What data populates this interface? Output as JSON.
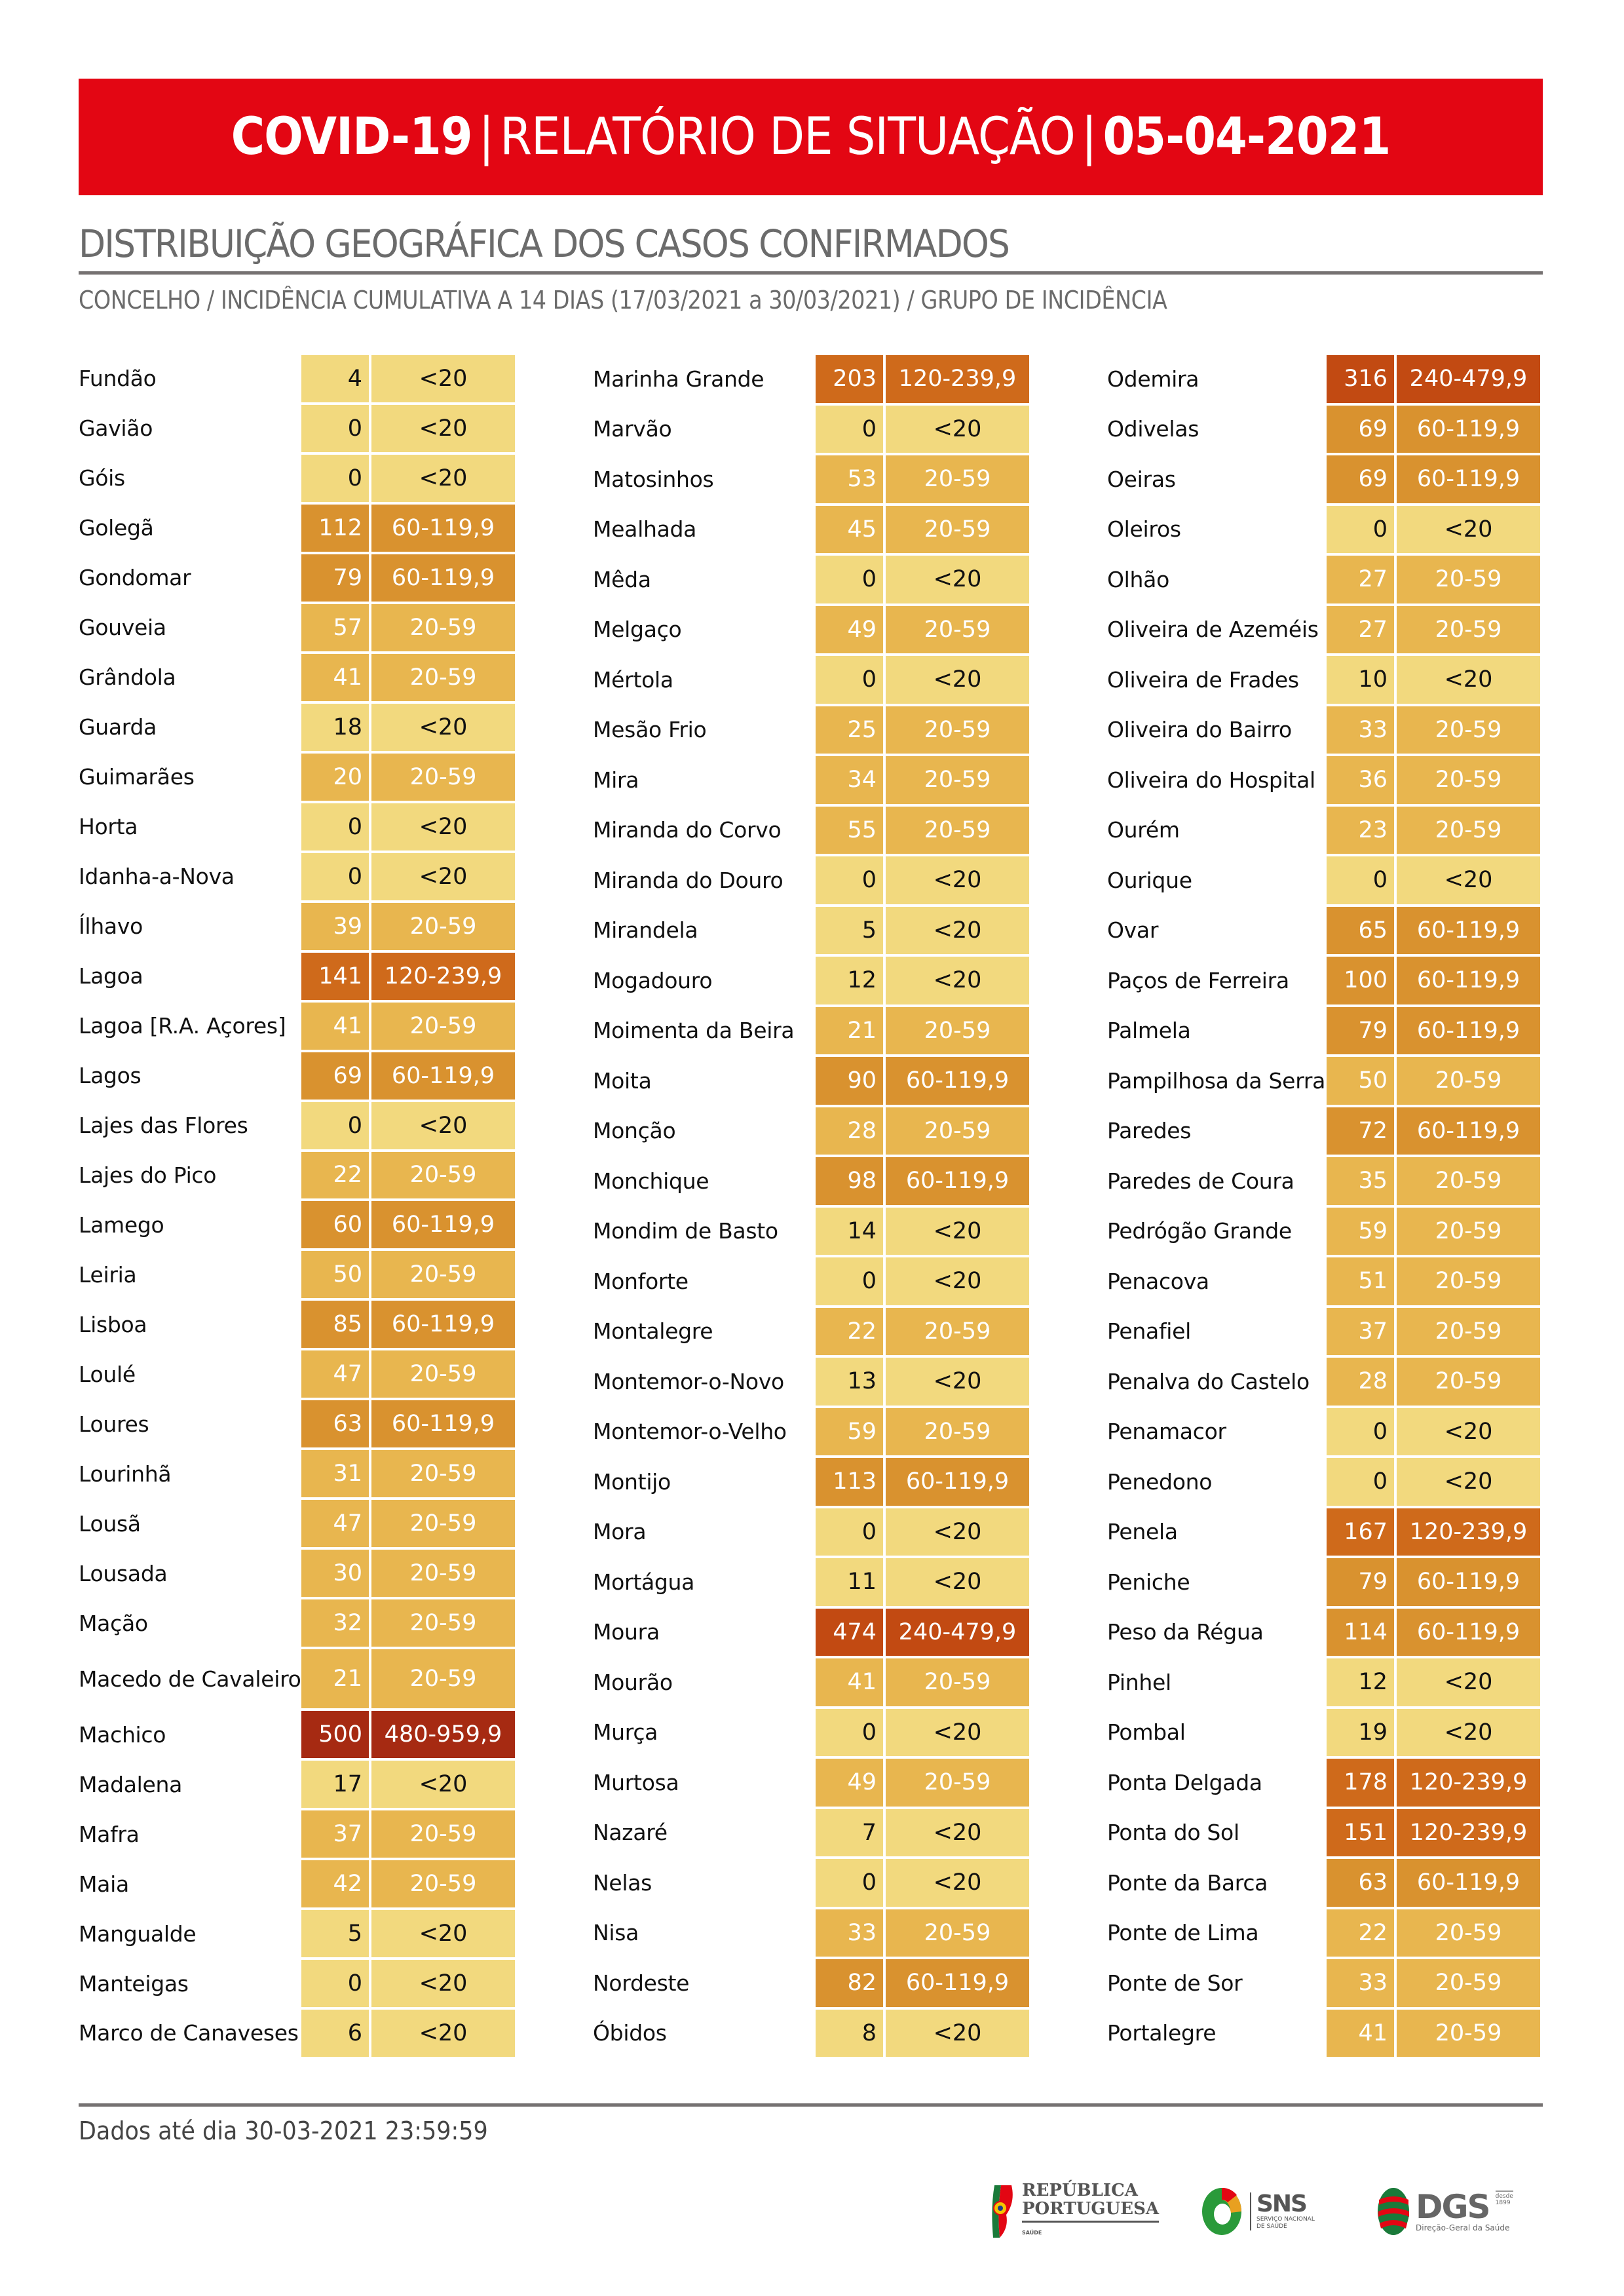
{
  "header": {
    "part1": "COVID-19",
    "sep": "|",
    "part2": "RELATÓRIO DE SITUAÇÃO",
    "part3": "05-04-2021",
    "background_color": "#e30613"
  },
  "section": {
    "title": "DISTRIBUIÇÃO GEOGRÁFICA DOS CASOS CONFIRMADOS",
    "subtitle": "CONCELHO / INCIDÊNCIA CUMULATIVA A 14 DIAS (17/03/2021 a 30/03/2021) / GRUPO DE INCIDÊNCIA"
  },
  "incidence_groups": {
    "<20": {
      "bg": "#f2d97e",
      "fg": "#111111"
    },
    "20-59": {
      "bg": "#e8b64f",
      "fg": "#ffffff"
    },
    "60-119,9": {
      "bg": "#d9922f",
      "fg": "#ffffff"
    },
    "120-239,9": {
      "bg": "#cf6a1b",
      "fg": "#ffffff"
    },
    "240-479,9": {
      "bg": "#c24a12",
      "fg": "#ffffff"
    },
    "480-959,9": {
      "bg": "#a62a12",
      "fg": "#ffffff"
    }
  },
  "columns": [
    [
      {
        "name": "Fundão",
        "value": "4",
        "group": "<20"
      },
      {
        "name": "Gavião",
        "value": "0",
        "group": "<20"
      },
      {
        "name": "Góis",
        "value": "0",
        "group": "<20"
      },
      {
        "name": "Golegã",
        "value": "112",
        "group": "60-119,9"
      },
      {
        "name": "Gondomar",
        "value": "79",
        "group": "60-119,9"
      },
      {
        "name": "Gouveia",
        "value": "57",
        "group": "20-59"
      },
      {
        "name": "Grândola",
        "value": "41",
        "group": "20-59"
      },
      {
        "name": "Guarda",
        "value": "18",
        "group": "<20"
      },
      {
        "name": "Guimarães",
        "value": "20",
        "group": "20-59"
      },
      {
        "name": "Horta",
        "value": "0",
        "group": "<20"
      },
      {
        "name": "Idanha-a-Nova",
        "value": "0",
        "group": "<20"
      },
      {
        "name": "Ílhavo",
        "value": "39",
        "group": "20-59"
      },
      {
        "name": "Lagoa",
        "value": "141",
        "group": "120-239,9"
      },
      {
        "name": "Lagoa [R.A. Açores]",
        "value": "41",
        "group": "20-59"
      },
      {
        "name": "Lagos",
        "value": "69",
        "group": "60-119,9"
      },
      {
        "name": "Lajes das Flores",
        "value": "0",
        "group": "<20"
      },
      {
        "name": "Lajes do Pico",
        "value": "22",
        "group": "20-59"
      },
      {
        "name": "Lamego",
        "value": "60",
        "group": "60-119,9"
      },
      {
        "name": "Leiria",
        "value": "50",
        "group": "20-59"
      },
      {
        "name": "Lisboa",
        "value": "85",
        "group": "60-119,9"
      },
      {
        "name": "Loulé",
        "value": "47",
        "group": "20-59"
      },
      {
        "name": "Loures",
        "value": "63",
        "group": "60-119,9"
      },
      {
        "name": "Lourinhã",
        "value": "31",
        "group": "20-59"
      },
      {
        "name": "Lousã",
        "value": "47",
        "group": "20-59"
      },
      {
        "name": "Lousada",
        "value": "30",
        "group": "20-59"
      },
      {
        "name": "Mação",
        "value": "32",
        "group": "20-59"
      },
      {
        "name": "Macedo de Cavaleiros",
        "value": "21",
        "group": "20-59",
        "tall": true
      },
      {
        "name": "Machico",
        "value": "500",
        "group": "480-959,9"
      },
      {
        "name": "Madalena",
        "value": "17",
        "group": "<20"
      },
      {
        "name": "Mafra",
        "value": "37",
        "group": "20-59"
      },
      {
        "name": "Maia",
        "value": "42",
        "group": "20-59"
      },
      {
        "name": "Mangualde",
        "value": "5",
        "group": "<20"
      },
      {
        "name": "Manteigas",
        "value": "0",
        "group": "<20"
      },
      {
        "name": "Marco de Canaveses",
        "value": "6",
        "group": "<20"
      }
    ],
    [
      {
        "name": "Marinha Grande",
        "value": "203",
        "group": "120-239,9"
      },
      {
        "name": "Marvão",
        "value": "0",
        "group": "<20"
      },
      {
        "name": "Matosinhos",
        "value": "53",
        "group": "20-59"
      },
      {
        "name": "Mealhada",
        "value": "45",
        "group": "20-59"
      },
      {
        "name": "Mêda",
        "value": "0",
        "group": "<20"
      },
      {
        "name": "Melgaço",
        "value": "49",
        "group": "20-59"
      },
      {
        "name": "Mértola",
        "value": "0",
        "group": "<20"
      },
      {
        "name": "Mesão Frio",
        "value": "25",
        "group": "20-59"
      },
      {
        "name": "Mira",
        "value": "34",
        "group": "20-59"
      },
      {
        "name": "Miranda do Corvo",
        "value": "55",
        "group": "20-59"
      },
      {
        "name": "Miranda do Douro",
        "value": "0",
        "group": "<20"
      },
      {
        "name": "Mirandela",
        "value": "5",
        "group": "<20"
      },
      {
        "name": "Mogadouro",
        "value": "12",
        "group": "<20"
      },
      {
        "name": "Moimenta da Beira",
        "value": "21",
        "group": "20-59"
      },
      {
        "name": "Moita",
        "value": "90",
        "group": "60-119,9"
      },
      {
        "name": "Monção",
        "value": "28",
        "group": "20-59"
      },
      {
        "name": "Monchique",
        "value": "98",
        "group": "60-119,9"
      },
      {
        "name": "Mondim de Basto",
        "value": "14",
        "group": "<20"
      },
      {
        "name": "Monforte",
        "value": "0",
        "group": "<20"
      },
      {
        "name": "Montalegre",
        "value": "22",
        "group": "20-59"
      },
      {
        "name": "Montemor-o-Novo",
        "value": "13",
        "group": "<20"
      },
      {
        "name": "Montemor-o-Velho",
        "value": "59",
        "group": "20-59"
      },
      {
        "name": "Montijo",
        "value": "113",
        "group": "60-119,9"
      },
      {
        "name": "Mora",
        "value": "0",
        "group": "<20"
      },
      {
        "name": "Mortágua",
        "value": "11",
        "group": "<20"
      },
      {
        "name": "Moura",
        "value": "474",
        "group": "240-479,9"
      },
      {
        "name": "Mourão",
        "value": "41",
        "group": "20-59"
      },
      {
        "name": "Murça",
        "value": "0",
        "group": "<20"
      },
      {
        "name": "Murtosa",
        "value": "49",
        "group": "20-59"
      },
      {
        "name": "Nazaré",
        "value": "7",
        "group": "<20"
      },
      {
        "name": "Nelas",
        "value": "0",
        "group": "<20"
      },
      {
        "name": "Nisa",
        "value": "33",
        "group": "20-59"
      },
      {
        "name": "Nordeste",
        "value": "82",
        "group": "60-119,9"
      },
      {
        "name": "Óbidos",
        "value": "8",
        "group": "<20"
      }
    ],
    [
      {
        "name": "Odemira",
        "value": "316",
        "group": "240-479,9"
      },
      {
        "name": "Odivelas",
        "value": "69",
        "group": "60-119,9"
      },
      {
        "name": "Oeiras",
        "value": "69",
        "group": "60-119,9"
      },
      {
        "name": "Oleiros",
        "value": "0",
        "group": "<20"
      },
      {
        "name": "Olhão",
        "value": "27",
        "group": "20-59"
      },
      {
        "name": "Oliveira de Azeméis",
        "value": "27",
        "group": "20-59"
      },
      {
        "name": "Oliveira de Frades",
        "value": "10",
        "group": "<20"
      },
      {
        "name": "Oliveira do Bairro",
        "value": "33",
        "group": "20-59"
      },
      {
        "name": "Oliveira do Hospital",
        "value": "36",
        "group": "20-59"
      },
      {
        "name": "Ourém",
        "value": "23",
        "group": "20-59"
      },
      {
        "name": "Ourique",
        "value": "0",
        "group": "<20"
      },
      {
        "name": "Ovar",
        "value": "65",
        "group": "60-119,9"
      },
      {
        "name": "Paços de Ferreira",
        "value": "100",
        "group": "60-119,9"
      },
      {
        "name": "Palmela",
        "value": "79",
        "group": "60-119,9"
      },
      {
        "name": "Pampilhosa da Serra",
        "value": "50",
        "group": "20-59"
      },
      {
        "name": "Paredes",
        "value": "72",
        "group": "60-119,9"
      },
      {
        "name": "Paredes de Coura",
        "value": "35",
        "group": "20-59"
      },
      {
        "name": "Pedrógão Grande",
        "value": "59",
        "group": "20-59"
      },
      {
        "name": "Penacova",
        "value": "51",
        "group": "20-59"
      },
      {
        "name": "Penafiel",
        "value": "37",
        "group": "20-59"
      },
      {
        "name": "Penalva do Castelo",
        "value": "28",
        "group": "20-59"
      },
      {
        "name": "Penamacor",
        "value": "0",
        "group": "<20"
      },
      {
        "name": "Penedono",
        "value": "0",
        "group": "<20"
      },
      {
        "name": "Penela",
        "value": "167",
        "group": "120-239,9"
      },
      {
        "name": "Peniche",
        "value": "79",
        "group": "60-119,9"
      },
      {
        "name": "Peso da Régua",
        "value": "114",
        "group": "60-119,9"
      },
      {
        "name": "Pinhel",
        "value": "12",
        "group": "<20"
      },
      {
        "name": "Pombal",
        "value": "19",
        "group": "<20"
      },
      {
        "name": "Ponta Delgada",
        "value": "178",
        "group": "120-239,9"
      },
      {
        "name": "Ponta do Sol",
        "value": "151",
        "group": "120-239,9"
      },
      {
        "name": "Ponte da Barca",
        "value": "63",
        "group": "60-119,9"
      },
      {
        "name": "Ponte de Lima",
        "value": "22",
        "group": "20-59"
      },
      {
        "name": "Ponte de Sor",
        "value": "33",
        "group": "20-59"
      },
      {
        "name": "Portalegre",
        "value": "41",
        "group": "20-59"
      }
    ]
  ],
  "footer": {
    "data_note": "Dados até dia 30-03-2021 23:59:59",
    "logos": {
      "rp": {
        "line1": "REPÚBLICA",
        "line2": "PORTUGUESA",
        "sub": "SAÚDE"
      },
      "sns": {
        "big": "SNS",
        "line1": "SERVIÇO NACIONAL",
        "line2": "DE SAÚDE"
      },
      "dgs": {
        "big": "DGS",
        "since1": "desde",
        "since2": "1899",
        "small": "Direção-Geral da Saúde"
      }
    }
  }
}
